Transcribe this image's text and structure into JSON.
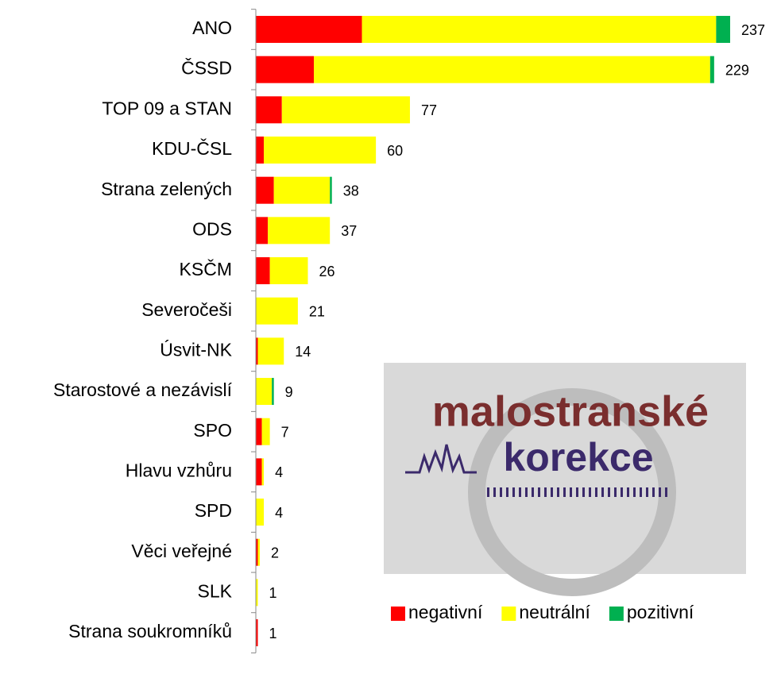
{
  "chart_data": {
    "type": "stacked_barh",
    "categories": [
      "ANO",
      "ČSSD",
      "TOP 09 a STAN",
      "KDU-ČSL",
      "Strana zelených",
      "ODS",
      "KSČM",
      "Severočeši",
      "Úsvit-NK",
      "Starostové a nezávislí",
      "SPO",
      "Hlavu vzhůru",
      "SPD",
      "Věci veřejné",
      "SLK",
      "Strana soukromníků"
    ],
    "series": [
      {
        "name": "negativní",
        "color": "#ff0000",
        "values": [
          53,
          29,
          13,
          4,
          9,
          6,
          7,
          0,
          1,
          0,
          3,
          3,
          0,
          1,
          0,
          1
        ]
      },
      {
        "name": "neutrální",
        "color": "#ffff00",
        "values": [
          177,
          198,
          64,
          56,
          28,
          31,
          19,
          21,
          13,
          8,
          4,
          1,
          4,
          1,
          1,
          0
        ]
      },
      {
        "name": "pozitivní",
        "color": "#00b050",
        "values": [
          7,
          2,
          0,
          0,
          1,
          0,
          0,
          0,
          0,
          1,
          0,
          0,
          0,
          0,
          0,
          0
        ]
      }
    ],
    "totals": [
      237,
      229,
      77,
      60,
      38,
      37,
      26,
      21,
      14,
      9,
      7,
      4,
      4,
      2,
      1,
      1
    ],
    "xlim": [
      0,
      237
    ],
    "legend": "lower right",
    "annotations": [
      "malostranské",
      "korekce"
    ]
  }
}
